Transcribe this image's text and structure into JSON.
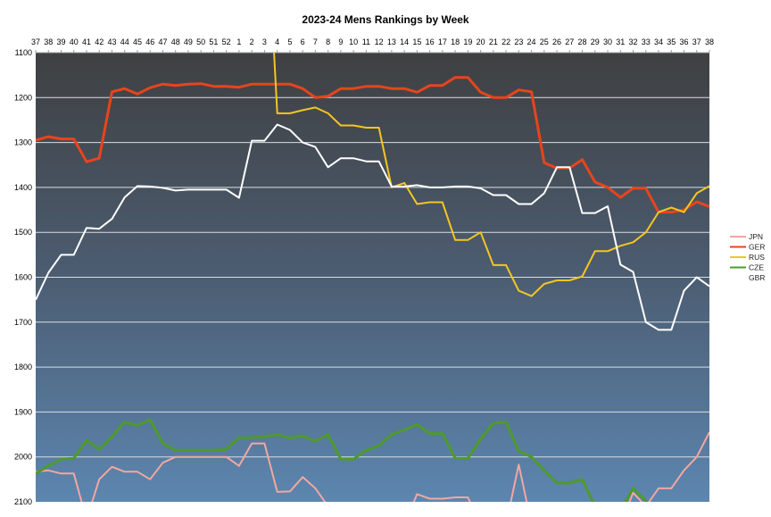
{
  "chart_data": {
    "type": "line",
    "title": "2023-24 Mens Rankings by Week",
    "xlabel": "",
    "ylabel": "",
    "categories": [
      "37",
      "38",
      "39",
      "40",
      "41",
      "42",
      "43",
      "44",
      "45",
      "46",
      "47",
      "48",
      "49",
      "50",
      "51",
      "52",
      "1",
      "2",
      "3",
      "4",
      "5",
      "6",
      "7",
      "8",
      "9",
      "10",
      "11",
      "12",
      "13",
      "14",
      "15",
      "16",
      "17",
      "18",
      "19",
      "20",
      "21",
      "22",
      "23",
      "24",
      "25",
      "26",
      "27",
      "28",
      "29",
      "30",
      "31",
      "32",
      "33",
      "34",
      "35",
      "36",
      "37",
      "38"
    ],
    "ylim": [
      1100,
      2100
    ],
    "y_reversed": true,
    "y_ticks": [
      1100,
      1200,
      1300,
      1400,
      1500,
      1600,
      1700,
      1800,
      1900,
      2000,
      2100
    ],
    "x_axis_position": "top",
    "grid": true,
    "legend": "right",
    "series": [
      {
        "name": "JPN",
        "color": "#f2a7a0",
        "values": [
          2033,
          2030,
          2037,
          2037,
          2140,
          2050,
          2022,
          2033,
          2033,
          2050,
          2013,
          2000,
          2000,
          2000,
          2000,
          2000,
          2020,
          1970,
          1970,
          2078,
          2077,
          2045,
          2070,
          2110,
          2150,
          2150,
          2150,
          2150,
          2150,
          2150,
          2083,
          2093,
          2093,
          2090,
          2090,
          2150,
          2150,
          2150,
          2017,
          2150,
          2150,
          2150,
          2150,
          2150,
          2150,
          2150,
          2150,
          2080,
          2110,
          2070,
          2070,
          2030,
          2000,
          1945
        ]
      },
      {
        "name": "GER",
        "color": "#e8441c",
        "values": [
          1295,
          1287,
          1292,
          1292,
          1343,
          1335,
          1187,
          1180,
          1192,
          1178,
          1170,
          1173,
          1170,
          1169,
          1175,
          1175,
          1177,
          1170,
          1170,
          1170,
          1170,
          1180,
          1200,
          1197,
          1180,
          1180,
          1175,
          1175,
          1180,
          1180,
          1188,
          1173,
          1173,
          1155,
          1155,
          1188,
          1200,
          1200,
          1183,
          1187,
          1345,
          1357,
          1357,
          1338,
          1388,
          1400,
          1422,
          1402,
          1402,
          1455,
          1455,
          1450,
          1432,
          1443
        ]
      },
      {
        "name": "RUS",
        "color": "#f4c620",
        "values": [
          null,
          null,
          null,
          null,
          null,
          null,
          null,
          null,
          null,
          null,
          null,
          null,
          null,
          null,
          null,
          null,
          null,
          null,
          700,
          1235,
          1235,
          1228,
          1222,
          1235,
          1262,
          1262,
          1267,
          1267,
          1400,
          1390,
          1437,
          1433,
          1433,
          1517,
          1517,
          1500,
          1573,
          1573,
          1630,
          1642,
          1615,
          1607,
          1607,
          1598,
          1542,
          1542,
          1530,
          1522,
          1500,
          1455,
          1445,
          1455,
          1413,
          1397
        ]
      },
      {
        "name": "CZE",
        "color": "#4f9a2c",
        "values": [
          2037,
          2020,
          2005,
          2003,
          1963,
          1983,
          1955,
          1922,
          1930,
          1917,
          1970,
          1985,
          1985,
          1985,
          1985,
          1983,
          1957,
          1957,
          1955,
          1950,
          1958,
          1953,
          1965,
          1950,
          2005,
          2005,
          1985,
          1975,
          1950,
          1940,
          1928,
          1948,
          1948,
          2003,
          2003,
          1960,
          1925,
          1922,
          1987,
          2000,
          2030,
          2058,
          2058,
          2050,
          2110,
          2130,
          2120,
          2070,
          2098,
          2150,
          2150,
          2150,
          2150,
          2150
        ]
      },
      {
        "name": "GBR",
        "color": "#ffffff",
        "values": [
          1650,
          1590,
          1550,
          1550,
          1490,
          1492,
          1470,
          1422,
          1397,
          1398,
          1401,
          1407,
          1405,
          1405,
          1405,
          1405,
          1423,
          1296,
          1296,
          1260,
          1272,
          1300,
          1310,
          1355,
          1335,
          1335,
          1342,
          1342,
          1398,
          1398,
          1395,
          1400,
          1400,
          1398,
          1398,
          1402,
          1417,
          1417,
          1437,
          1437,
          1413,
          1355,
          1355,
          1457,
          1457,
          1442,
          1572,
          1588,
          1700,
          1717,
          1717,
          1630,
          1600,
          1620
        ]
      }
    ]
  }
}
